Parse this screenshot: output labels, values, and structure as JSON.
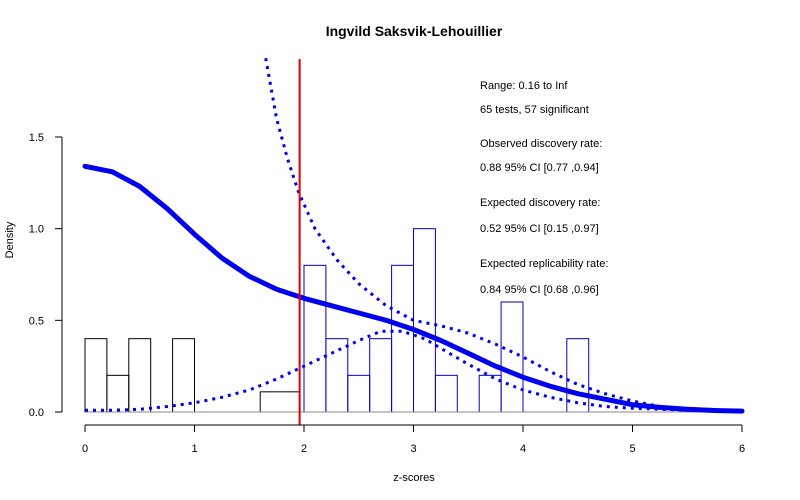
{
  "chart_data": {
    "type": "histogram",
    "title": "Ingvild Saksvik-Lehouillier",
    "xlabel": "z-scores",
    "ylabel": "Density",
    "xlim": [
      0,
      6
    ],
    "ylim": [
      0,
      1.5
    ],
    "x_ticks": [
      "0",
      "1",
      "2",
      "3",
      "4",
      "5",
      "6"
    ],
    "y_ticks": [
      "0.0",
      "0.5",
      "1.0",
      "1.5"
    ],
    "significance_threshold": 1.96,
    "bin_width": 0.2,
    "bins": [
      {
        "x0": 0.0,
        "x1": 0.2,
        "density": 0.4,
        "color": "#000000"
      },
      {
        "x0": 0.2,
        "x1": 0.4,
        "density": 0.2,
        "color": "#000000"
      },
      {
        "x0": 0.4,
        "x1": 0.6,
        "density": 0.4,
        "color": "#000000"
      },
      {
        "x0": 0.8,
        "x1": 1.0,
        "density": 0.4,
        "color": "#000000"
      },
      {
        "x0": 1.6,
        "x1": 1.96,
        "density": 0.11,
        "color": "#000000"
      },
      {
        "x0": 2.0,
        "x1": 2.2,
        "density": 0.8,
        "color": "#0000cc"
      },
      {
        "x0": 2.2,
        "x1": 2.4,
        "density": 0.4,
        "color": "#0000cc"
      },
      {
        "x0": 2.4,
        "x1": 2.6,
        "density": 0.2,
        "color": "#0000cc"
      },
      {
        "x0": 2.6,
        "x1": 2.8,
        "density": 0.4,
        "color": "#0000cc"
      },
      {
        "x0": 2.8,
        "x1": 3.0,
        "density": 0.8,
        "color": "#0000cc"
      },
      {
        "x0": 3.0,
        "x1": 3.2,
        "density": 1.0,
        "color": "#0000cc"
      },
      {
        "x0": 3.2,
        "x1": 3.4,
        "density": 0.2,
        "color": "#0000cc"
      },
      {
        "x0": 3.6,
        "x1": 3.8,
        "density": 0.2,
        "color": "#0000cc"
      },
      {
        "x0": 3.8,
        "x1": 4.0,
        "density": 0.6,
        "color": "#0000cc"
      },
      {
        "x0": 4.4,
        "x1": 4.6,
        "density": 0.4,
        "color": "#0000cc"
      }
    ],
    "curves": {
      "solid": [
        [
          0,
          1.34
        ],
        [
          0.25,
          1.31
        ],
        [
          0.5,
          1.23
        ],
        [
          0.75,
          1.11
        ],
        [
          1.0,
          0.97
        ],
        [
          1.25,
          0.84
        ],
        [
          1.5,
          0.74
        ],
        [
          1.75,
          0.67
        ],
        [
          2.0,
          0.62
        ],
        [
          2.25,
          0.58
        ],
        [
          2.5,
          0.54
        ],
        [
          2.75,
          0.5
        ],
        [
          3.0,
          0.45
        ],
        [
          3.25,
          0.39
        ],
        [
          3.5,
          0.32
        ],
        [
          3.75,
          0.25
        ],
        [
          4.0,
          0.19
        ],
        [
          4.25,
          0.14
        ],
        [
          4.5,
          0.1
        ],
        [
          4.75,
          0.07
        ],
        [
          5.0,
          0.04
        ],
        [
          5.25,
          0.025
        ],
        [
          5.5,
          0.015
        ],
        [
          5.75,
          0.008
        ],
        [
          6.0,
          0.005
        ]
      ],
      "dotted_upper": [
        [
          1.65,
          1.93
        ],
        [
          1.75,
          1.6
        ],
        [
          1.85,
          1.38
        ],
        [
          1.95,
          1.2
        ],
        [
          2.1,
          1.0
        ],
        [
          2.3,
          0.83
        ],
        [
          2.5,
          0.7
        ],
        [
          2.75,
          0.58
        ],
        [
          3.0,
          0.5
        ],
        [
          3.25,
          0.47
        ],
        [
          3.5,
          0.43
        ],
        [
          3.75,
          0.37
        ],
        [
          4.0,
          0.3
        ],
        [
          4.25,
          0.22
        ],
        [
          4.5,
          0.15
        ],
        [
          4.75,
          0.1
        ],
        [
          5.0,
          0.06
        ],
        [
          5.25,
          0.03
        ],
        [
          5.5,
          0.015
        ],
        [
          5.75,
          0.008
        ],
        [
          6.0,
          0.005
        ]
      ],
      "dotted_lower": [
        [
          0,
          0.01
        ],
        [
          0.25,
          0.01
        ],
        [
          0.5,
          0.015
        ],
        [
          0.75,
          0.03
        ],
        [
          1.0,
          0.05
        ],
        [
          1.25,
          0.08
        ],
        [
          1.5,
          0.12
        ],
        [
          1.75,
          0.18
        ],
        [
          2.0,
          0.25
        ],
        [
          2.25,
          0.32
        ],
        [
          2.5,
          0.39
        ],
        [
          2.7,
          0.44
        ],
        [
          2.9,
          0.44
        ],
        [
          3.1,
          0.4
        ],
        [
          3.3,
          0.33
        ],
        [
          3.5,
          0.26
        ],
        [
          3.75,
          0.18
        ],
        [
          4.0,
          0.12
        ],
        [
          4.25,
          0.08
        ],
        [
          4.5,
          0.05
        ],
        [
          4.75,
          0.03
        ],
        [
          5.0,
          0.02
        ],
        [
          5.5,
          0.01
        ],
        [
          6.0,
          0.005
        ]
      ]
    },
    "colors": {
      "curve": "#0000ee",
      "threshold": "#dd0000",
      "axis": "#000000",
      "significant_bins": "#0000cc",
      "nonsignificant_bins": "#000000"
    },
    "annotations": {
      "range": "Range: 0.16 to Inf",
      "tests": "65 tests, 57 significant",
      "odr_label": "Observed discovery rate:",
      "odr_value": "0.88  95% CI [0.77 ,0.94]",
      "edr_label": "Expected discovery rate:",
      "edr_value": "0.52  95% CI [0.15 ,0.97]",
      "err_label": "Expected replicability rate:",
      "err_value": "0.84  95% CI [0.68 ,0.96]"
    }
  }
}
